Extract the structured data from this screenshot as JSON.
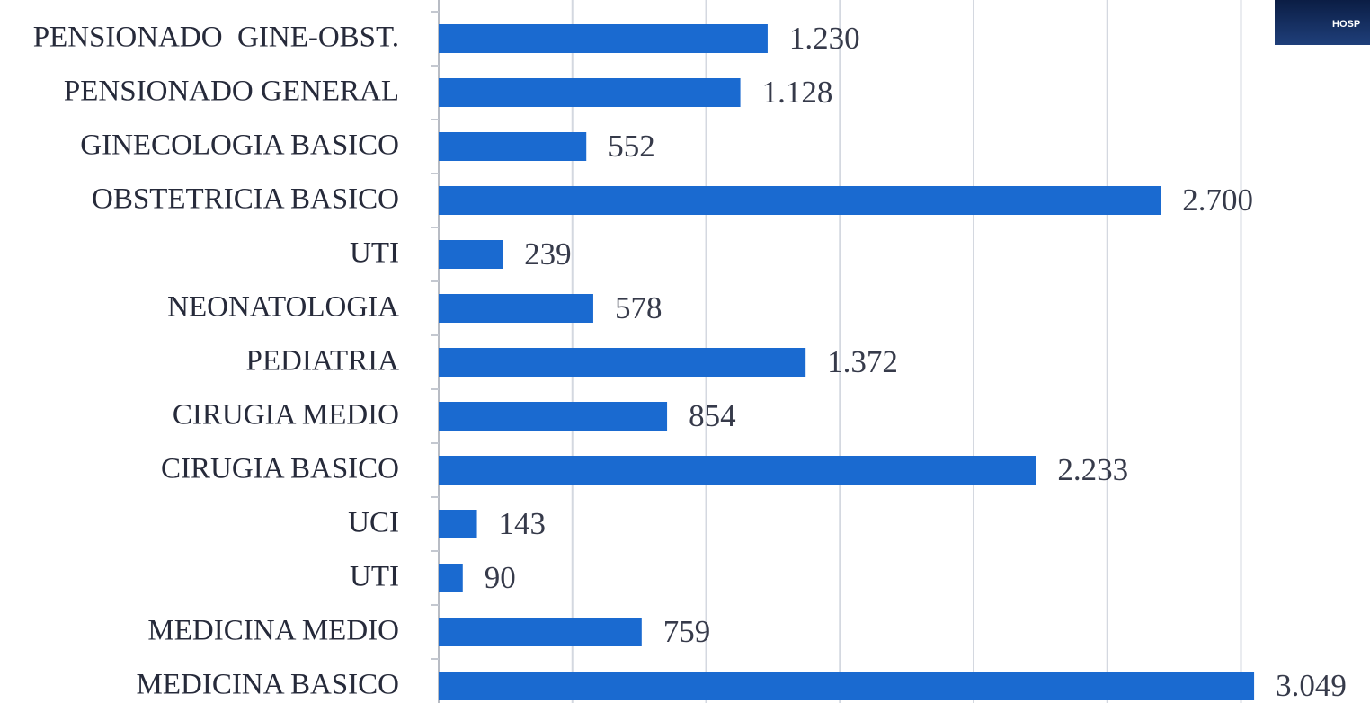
{
  "chart_data": {
    "type": "barh",
    "logo_text": "HOSP",
    "categories": [
      "PENSIONADO  GINE-OBST.",
      "PENSIONADO GENERAL",
      "GINECOLOGIA BASICO",
      "OBSTETRICIA BASICO",
      "UTI",
      "NEONATOLOGIA",
      "PEDIATRIA",
      "CIRUGIA MEDIO",
      "CIRUGIA BASICO",
      "UCI",
      "UTI",
      "MEDICINA MEDIO",
      "MEDICINA BASICO"
    ],
    "values": [
      1230,
      1128,
      552,
      2700,
      239,
      578,
      1372,
      854,
      2233,
      143,
      90,
      759,
      3049
    ],
    "value_labels": [
      "1.230",
      "1.128",
      "552",
      "2.700",
      "239",
      "578",
      "1.372",
      "854",
      "2.233",
      "143",
      "90",
      "759",
      "3.049"
    ],
    "color": "#1a6ad0",
    "xlim": [
      0,
      3500
    ],
    "xticks": [
      0,
      500,
      1000,
      1500,
      2000,
      2500,
      3000
    ],
    "grid": true
  }
}
